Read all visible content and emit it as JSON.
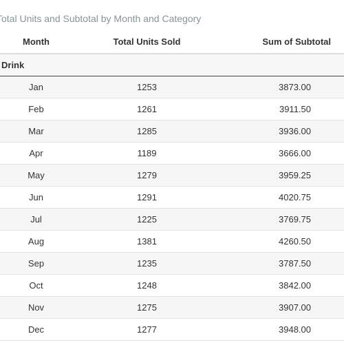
{
  "title": "Total Units and Subtotal by Month and Category",
  "columns": {
    "month": "Month",
    "units": "Total Units Sold",
    "subtotal": "Sum of Subtotal"
  },
  "group": {
    "label": "Drink"
  },
  "rows": [
    {
      "month": "Jan",
      "units": "1253",
      "subtotal": "3873.00"
    },
    {
      "month": "Feb",
      "units": "1261",
      "subtotal": "3911.50"
    },
    {
      "month": "Mar",
      "units": "1285",
      "subtotal": "3936.00"
    },
    {
      "month": "Apr",
      "units": "1189",
      "subtotal": "3666.00"
    },
    {
      "month": "May",
      "units": "1279",
      "subtotal": "3959.25"
    },
    {
      "month": "Jun",
      "units": "1291",
      "subtotal": "4020.75"
    },
    {
      "month": "Jul",
      "units": "1225",
      "subtotal": "3769.75"
    },
    {
      "month": "Aug",
      "units": "1381",
      "subtotal": "4260.50"
    },
    {
      "month": "Sep",
      "units": "1235",
      "subtotal": "3787.50"
    },
    {
      "month": "Oct",
      "units": "1248",
      "subtotal": "3842.00"
    },
    {
      "month": "Nov",
      "units": "1275",
      "subtotal": "3907.00"
    },
    {
      "month": "Dec",
      "units": "1277",
      "subtotal": "3948.00"
    }
  ]
}
